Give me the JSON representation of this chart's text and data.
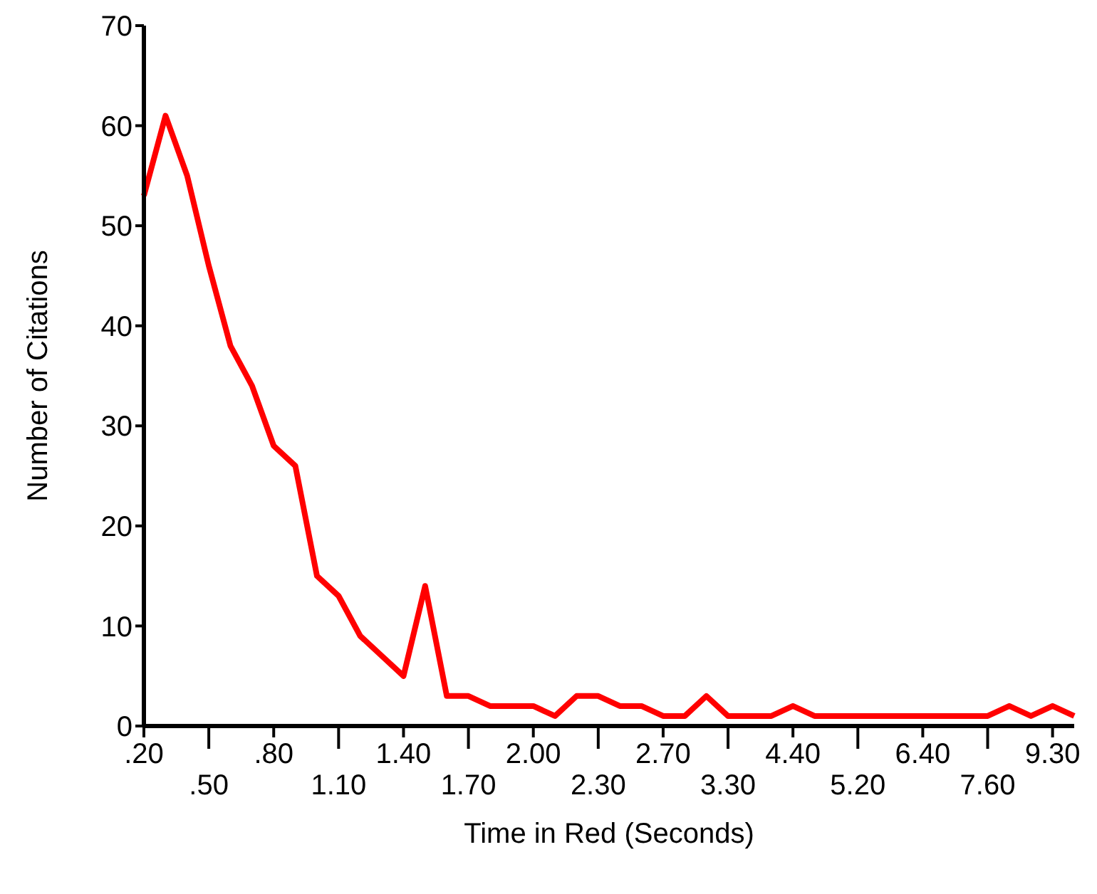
{
  "chart_data": {
    "type": "line",
    "xlabel": "Time in Red (Seconds)",
    "ylabel": "Number of Citations",
    "categories": [
      ".20",
      null,
      null,
      ".50",
      null,
      null,
      ".80",
      null,
      null,
      "1.10",
      null,
      null,
      "1.40",
      null,
      null,
      "1.70",
      null,
      null,
      "2.00",
      null,
      null,
      "2.30",
      null,
      null,
      "2.70",
      null,
      null,
      "3.30",
      null,
      null,
      "4.40",
      null,
      null,
      "5.20",
      null,
      null,
      "6.40",
      null,
      null,
      "7.60",
      null,
      null,
      "9.30",
      null
    ],
    "series": [
      {
        "color": "#ff0000",
        "values": [
          53,
          61,
          55,
          46,
          38,
          34,
          28,
          26,
          15,
          13,
          9,
          7,
          5,
          14,
          3,
          3,
          2,
          2,
          2,
          1,
          3,
          3,
          2,
          2,
          1,
          1,
          3,
          1,
          1,
          1,
          2,
          1,
          1,
          1,
          1,
          1,
          1,
          1,
          1,
          1,
          2,
          1,
          2,
          1
        ]
      }
    ],
    "ylim": [
      0,
      70
    ],
    "yticks": [
      0,
      10,
      20,
      30,
      40,
      50,
      60,
      70
    ],
    "grid": false,
    "legend": false,
    "marker": "none",
    "line_style": "solid"
  }
}
